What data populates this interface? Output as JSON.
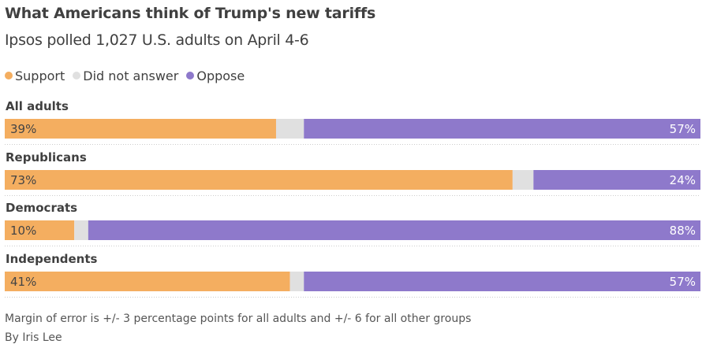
{
  "chart_data": {
    "type": "bar",
    "stacked": true,
    "orientation": "horizontal",
    "title": "What Americans think of Trump's new tariffs",
    "subtitle": "Ipsos polled 1,027 U.S. adults on April 4-6",
    "categories": [
      "All adults",
      "Republicans",
      "Democrats",
      "Independents"
    ],
    "series": [
      {
        "name": "Support",
        "color": "#f4ae60",
        "values": [
          39,
          73,
          10,
          41
        ],
        "labels": [
          "39%",
          "73%",
          "10%",
          "41%"
        ]
      },
      {
        "name": "Did not answer",
        "color": "#e0e0e0",
        "values": [
          4,
          3,
          2,
          2
        ]
      },
      {
        "name": "Oppose",
        "color": "#8e79cb",
        "values": [
          57,
          24,
          88,
          57
        ],
        "labels": [
          "57%",
          "24%",
          "88%",
          "57%"
        ]
      }
    ],
    "xlim": [
      0,
      100
    ],
    "legend": "top-left"
  },
  "footnote": "Margin of error is +/- 3 percentage points for all adults and +/- 6 for all other groups",
  "byline": "By Iris Lee"
}
